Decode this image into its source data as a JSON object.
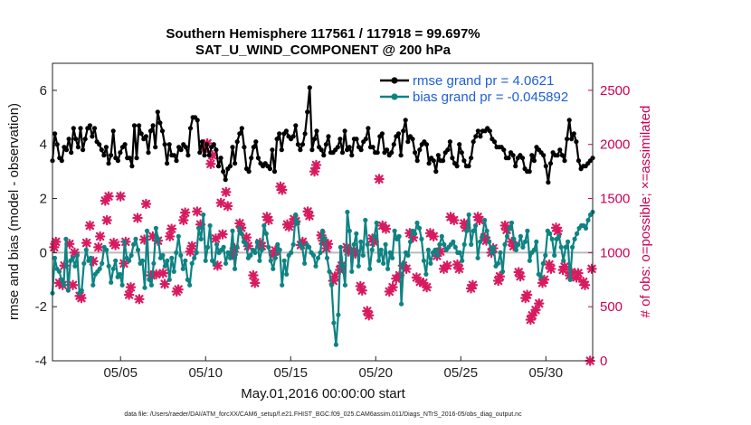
{
  "chart_data": {
    "type": "line",
    "title_line1": "Southern Hemisphere 117561 / 117918 = 99.697%",
    "title_line2": "SAT_U_WIND_COMPONENT @ 200 hPa",
    "xlabel": "May.01,2016 00:00:00 start",
    "ylabel": "rmse and bias (model - observation)",
    "y2label": "# of obs: o=possible; ×=assimilated",
    "xlim": [
      1,
      32.75
    ],
    "ylim": [
      -4,
      7
    ],
    "y2lim": [
      0,
      2750
    ],
    "x_ticks": [
      5,
      10,
      15,
      20,
      25,
      30
    ],
    "x_tick_labels": [
      "05/05",
      "05/10",
      "05/15",
      "05/20",
      "05/25",
      "05/30"
    ],
    "y_ticks": [
      -4,
      -2,
      0,
      2,
      4,
      6
    ],
    "y_tick_labels": [
      "-4",
      "-2",
      "0",
      "2",
      "4",
      "6"
    ],
    "y2_ticks": [
      0,
      500,
      1000,
      1500,
      2000,
      2500
    ],
    "y2_tick_labels": [
      "0",
      "500",
      "1000",
      "1500",
      "2000",
      "2500"
    ],
    "footer": "data file: /Users/raeder/DAI/ATM_forcXX/CAM6_setup/f.e21.FHIST_BGC.f09_025.CAM6assim.011/Diags_NTrS_2016-05/obs_diag_output.nc",
    "zero_line": 0,
    "colors": {
      "rmse": "#000000",
      "bias": "#0f8383",
      "obs": "#d81b60",
      "legend_text": "#1f5fd6",
      "right_axis": "#cc0055",
      "zero": "#bbbbbb"
    },
    "series": [
      {
        "name": "rmse grand pr = 4.0621",
        "values": [
          3.4,
          4.4,
          4.0,
          3.5,
          3.4,
          3.9,
          3.8,
          4.2,
          3.7,
          4.6,
          4.2,
          3.9,
          4.6,
          3.8,
          4.2,
          4.6,
          4.7,
          4.3,
          4.6,
          4.1,
          4.0,
          3.8,
          3.6,
          3.9,
          3.3,
          3.6,
          4.5,
          3.5,
          3.4,
          3.7,
          3.9,
          4.0,
          3.5,
          3.5,
          3.2,
          4.7,
          3.5,
          4.7,
          4.4,
          4.2,
          4.3,
          3.7,
          4.5,
          4.7,
          3.9,
          5.2,
          4.8,
          4.5,
          4.0,
          3.3,
          4.0,
          3.6,
          3.6,
          3.4,
          3.9,
          3.8,
          4.0,
          3.9,
          3.6,
          4.6,
          5.0,
          5.0,
          4.9,
          3.7,
          4.1,
          3.6,
          4.0,
          3.6,
          3.9,
          4.0,
          3.8,
          3.2,
          3.5,
          3.0,
          2.7,
          3.1,
          3.2,
          3.9,
          3.3,
          4.1,
          4.4,
          4.6,
          3.9,
          3.1,
          3.0,
          3.5,
          3.9,
          4.1,
          3.5,
          3.3,
          3.2,
          3.3,
          3.2,
          3.1,
          3.8,
          3.0,
          4.2,
          4.4,
          3.8,
          4.4,
          4.5,
          4.3,
          4.2,
          4.3,
          4.7,
          4.0,
          3.8,
          4.0,
          4.4,
          5.2,
          6.1,
          3.8,
          4.2,
          4.5,
          3.9,
          3.8,
          3.6,
          4.0,
          4.3,
          3.7,
          3.7,
          3.8,
          3.9,
          4.2,
          3.7,
          4.5,
          3.8,
          3.9,
          3.6,
          4.2,
          4.2,
          3.9,
          3.8,
          4.1,
          4.2,
          4.6,
          3.9,
          3.9,
          3.7,
          3.7,
          4.3,
          4.4,
          3.7,
          3.8,
          3.6,
          3.7,
          4.0,
          4.3,
          4.4,
          3.6,
          4.5,
          4.9,
          4.1,
          4.3,
          4.2,
          3.7,
          3.4,
          3.8,
          4.0,
          4.1,
          4.0,
          3.3,
          3.5,
          3.4,
          3.0,
          3.6,
          3.4,
          3.4,
          3.7,
          3.8,
          4.1,
          3.5,
          3.3,
          3.2,
          4.0,
          3.7,
          3.4,
          3.2,
          3.2,
          3.5,
          4.1,
          4.3,
          4.5,
          4.3,
          4.5,
          4.5,
          4.6,
          4.5,
          4.2,
          4.1,
          3.9,
          3.9,
          3.9,
          3.8,
          3.5,
          3.5,
          3.7,
          3.6,
          3.2,
          3.5,
          3.6,
          3.5,
          3.1,
          3.0,
          3.0,
          3.6,
          3.4,
          3.9,
          3.8,
          3.7,
          3.6,
          3.2,
          2.6,
          3.3,
          3.7,
          3.6,
          3.6,
          3.8,
          3.6,
          3.4,
          4.2,
          4.9,
          4.2,
          4.4,
          4.1,
          3.4,
          3.1,
          3.2,
          3.2,
          3.3,
          3.4,
          3.5
        ]
      },
      {
        "name": "bias grand pr = -0.045892",
        "values": [
          -1.5,
          -0.2,
          -0.6,
          -0.7,
          -1.0,
          -1.2,
          0.5,
          -1.4,
          -0.3,
          -0.2,
          -0.5,
          -0.1,
          -1.5,
          -1.4,
          -0.4,
          0.1,
          -0.3,
          -0.2,
          -1.2,
          -0.8,
          -0.7,
          -0.6,
          -0.4,
          0.2,
          0.1,
          -0.5,
          -1.1,
          -0.6,
          -0.3,
          -0.9,
          -0.8,
          -1.2,
          0.4,
          -0.2,
          -0.3,
          -0.1,
          0.3,
          0.5,
          0.1,
          -0.4,
          -0.3,
          -1.3,
          0.8,
          -1.0,
          -1.2,
          -0.4,
          0.9,
          0.5,
          -0.2,
          -0.1,
          -0.5,
          -0.3,
          -1.0,
          -0.2,
          -0.7,
          0.0,
          0.6,
          -0.1,
          -0.6,
          -0.3,
          -1.0,
          -1.2,
          -0.4,
          -0.2,
          0.0,
          0.9,
          0.5,
          1.4,
          -0.3,
          0.2,
          1.0,
          -0.3,
          -0.4,
          0.3,
          0.0,
          0.1,
          0.2,
          -0.4,
          0.0,
          -0.2,
          0.8,
          -0.6,
          0.2,
          0.9,
          0.7,
          0.4,
          0.3,
          -0.2,
          -0.1,
          0.1,
          0.0,
          0.4,
          -0.3,
          0.1,
          1.0,
          0.7,
          0.2,
          -0.3,
          -0.6,
          -0.2,
          0.3,
          0.1,
          -1.2,
          -0.3,
          -0.8,
          -0.1,
          0.0,
          0.3,
          1.4,
          1.1,
          0.3,
          0.2,
          -0.4,
          0.3,
          0.2,
          0.0,
          -0.1,
          -0.5,
          -0.2,
          0.0,
          0.8,
          0.5,
          -0.2,
          -0.7,
          -1.2,
          -2.6,
          -3.4,
          -2.3,
          0.2,
          -0.5,
          -1.2,
          1.5,
          0.8,
          -0.7,
          0.3,
          0.7,
          -0.5,
          0.4,
          -0.1,
          1.2,
          0.3,
          -0.6,
          0.1,
          0.6,
          1.1,
          -0.3,
          0.1,
          -0.4,
          0.3,
          -0.6,
          0.0,
          -0.2,
          0.8,
          0.5,
          0.6,
          -1.9,
          -0.4,
          0.0,
          -0.1,
          0.4,
          0.8,
          0.7,
          1.1,
          0.9,
          0.5,
          -0.3,
          -0.8,
          0.1,
          -0.4,
          0.0,
          0.1,
          -0.1,
          0.3,
          0.6,
          0.3,
          0.1,
          0.2,
          0.3,
          0.4,
          0.2,
          0.0,
          0.0,
          -0.3,
          0.3,
          0.8,
          1.4,
          0.3,
          0.8,
          1.0,
          -0.2,
          0.4,
          0.6,
          1.2,
          0.8,
          0.4,
          0.0,
          0.2,
          -0.5,
          -0.4,
          0.0,
          -0.7,
          0.3,
          0.6,
          0.9,
          1.1,
          0.5,
          0.1,
          0.3,
          0.6,
          0.2,
          0.4,
          0.8,
          -0.3,
          0.0,
          0.1,
          0.4,
          -0.8,
          -0.9,
          -0.4,
          -0.1,
          0.8,
          0.7,
          0.5,
          -0.1,
          0.5,
          0.6,
          0.2,
          -0.3,
          0.2,
          0.4,
          -1.0,
          0.2,
          0.5,
          0.7,
          0.9,
          1.0,
          1.0,
          0.9,
          1.2,
          1.4,
          1.5
        ]
      },
      {
        "name": "assimilated",
        "axis": "right",
        "points": [
          [
            1.1,
            1050
          ],
          [
            1.4,
            720
          ],
          [
            1.6,
            700
          ],
          [
            2.0,
            1080
          ],
          [
            2.3,
            1000
          ],
          [
            2.6,
            600
          ],
          [
            3.0,
            1090
          ],
          [
            3.4,
            920
          ],
          [
            3.8,
            1150
          ],
          [
            4.1,
            1480
          ],
          [
            4.3,
            1520
          ],
          [
            4.6,
            1090
          ],
          [
            5.0,
            1520
          ],
          [
            5.3,
            1100
          ],
          [
            5.6,
            680
          ],
          [
            6.1,
            570
          ],
          [
            6.5,
            1450
          ],
          [
            6.9,
            1150
          ],
          [
            7.2,
            1110
          ],
          [
            7.6,
            710
          ],
          [
            8.0,
            1220
          ],
          [
            8.4,
            660
          ],
          [
            8.8,
            1370
          ],
          [
            9.2,
            1060
          ],
          [
            9.7,
            1260
          ],
          [
            10.1,
            2010
          ],
          [
            10.4,
            1900
          ],
          [
            10.7,
            880
          ],
          [
            11.0,
            1170
          ],
          [
            11.3,
            1430
          ],
          [
            11.7,
            1040
          ],
          [
            12.1,
            1230
          ],
          [
            12.5,
            1060
          ],
          [
            12.9,
            720
          ],
          [
            13.3,
            1060
          ],
          [
            13.7,
            1300
          ],
          [
            14.1,
            1020
          ],
          [
            14.5,
            1580
          ],
          [
            14.9,
            1240
          ],
          [
            15.3,
            1290
          ],
          [
            15.7,
            1100
          ],
          [
            16.1,
            1340
          ],
          [
            16.5,
            1810
          ],
          [
            16.9,
            1110
          ],
          [
            17.2,
            1080
          ],
          [
            17.6,
            780
          ],
          [
            18.0,
            880
          ],
          [
            18.4,
            1010
          ],
          [
            18.8,
            990
          ],
          [
            19.2,
            650
          ],
          [
            19.6,
            420
          ],
          [
            19.9,
            1100
          ],
          [
            20.2,
            1680
          ],
          [
            20.6,
            1220
          ],
          [
            21.0,
            680
          ],
          [
            21.4,
            790
          ],
          [
            21.8,
            850
          ],
          [
            22.2,
            1140
          ],
          [
            22.6,
            730
          ],
          [
            23.0,
            680
          ],
          [
            23.4,
            1150
          ],
          [
            23.8,
            1010
          ],
          [
            24.2,
            880
          ],
          [
            24.6,
            1300
          ],
          [
            24.9,
            850
          ],
          [
            25.3,
            1230
          ],
          [
            25.7,
            700
          ],
          [
            26.1,
            1300
          ],
          [
            26.5,
            1110
          ],
          [
            26.9,
            1040
          ],
          [
            27.3,
            780
          ],
          [
            27.7,
            1210
          ],
          [
            28.1,
            1060
          ],
          [
            28.5,
            780
          ],
          [
            28.9,
            610
          ],
          [
            29.2,
            420
          ],
          [
            29.6,
            530
          ],
          [
            29.9,
            750
          ],
          [
            30.3,
            850
          ],
          [
            30.7,
            1200
          ],
          [
            31.1,
            870
          ],
          [
            31.5,
            820
          ],
          [
            31.9,
            810
          ],
          [
            32.2,
            730
          ],
          [
            32.7,
            850
          ]
        ]
      },
      {
        "name": "assimilated_2",
        "axis": "right",
        "points": [
          [
            1.2,
            1100
          ],
          [
            1.7,
            880
          ],
          [
            2.2,
            700
          ],
          [
            2.7,
            580
          ],
          [
            3.2,
            1250
          ],
          [
            3.7,
            1050
          ],
          [
            4.2,
            1300
          ],
          [
            4.7,
            1070
          ],
          [
            5.2,
            900
          ],
          [
            5.5,
            610
          ],
          [
            6.0,
            1320
          ],
          [
            6.4,
            1120
          ],
          [
            6.8,
            790
          ],
          [
            7.1,
            800
          ],
          [
            7.5,
            810
          ],
          [
            7.9,
            1150
          ],
          [
            8.3,
            640
          ],
          [
            8.7,
            1300
          ],
          [
            9.1,
            1010
          ],
          [
            9.5,
            1380
          ],
          [
            9.9,
            1960
          ],
          [
            10.3,
            1820
          ],
          [
            10.6,
            1130
          ],
          [
            10.9,
            1460
          ],
          [
            11.2,
            1560
          ],
          [
            11.6,
            980
          ],
          [
            12.0,
            1270
          ],
          [
            12.4,
            1140
          ],
          [
            12.8,
            790
          ],
          [
            13.2,
            1090
          ],
          [
            13.6,
            1330
          ],
          [
            14.0,
            980
          ],
          [
            14.4,
            1610
          ],
          [
            14.8,
            1260
          ],
          [
            15.2,
            1310
          ],
          [
            15.6,
            1070
          ],
          [
            16.0,
            1380
          ],
          [
            16.4,
            1750
          ],
          [
            16.8,
            1160
          ],
          [
            17.1,
            1040
          ],
          [
            17.5,
            740
          ],
          [
            17.9,
            840
          ],
          [
            18.3,
            1050
          ],
          [
            18.7,
            1020
          ],
          [
            19.1,
            690
          ],
          [
            19.5,
            460
          ],
          [
            19.8,
            1130
          ],
          [
            20.4,
            1250
          ],
          [
            20.8,
            640
          ],
          [
            21.2,
            760
          ],
          [
            21.6,
            880
          ],
          [
            22.0,
            1180
          ],
          [
            22.4,
            770
          ],
          [
            22.8,
            720
          ],
          [
            23.2,
            1180
          ],
          [
            23.6,
            970
          ],
          [
            24.0,
            850
          ],
          [
            24.4,
            1330
          ],
          [
            24.8,
            890
          ],
          [
            25.2,
            1270
          ],
          [
            25.6,
            670
          ],
          [
            26.0,
            1330
          ],
          [
            26.4,
            1140
          ],
          [
            26.8,
            1000
          ],
          [
            27.2,
            740
          ],
          [
            27.6,
            1250
          ],
          [
            28.0,
            1100
          ],
          [
            28.4,
            820
          ],
          [
            28.8,
            580
          ],
          [
            29.1,
            380
          ],
          [
            29.4,
            470
          ],
          [
            29.8,
            720
          ],
          [
            30.2,
            890
          ],
          [
            30.6,
            1230
          ],
          [
            31.0,
            840
          ],
          [
            31.4,
            790
          ],
          [
            31.8,
            770
          ],
          [
            32.3,
            700
          ],
          [
            32.6,
            0
          ]
        ]
      }
    ]
  }
}
